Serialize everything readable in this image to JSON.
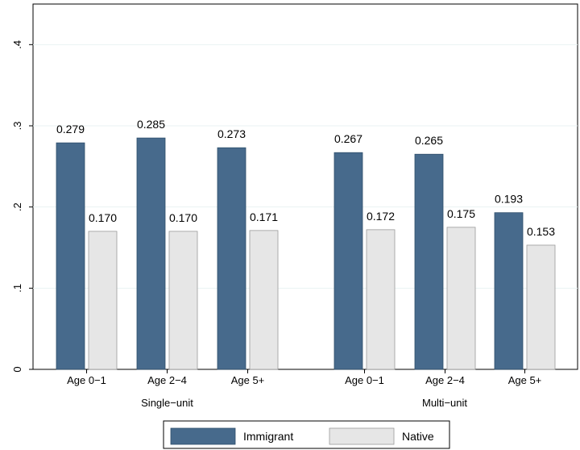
{
  "chart_data": {
    "type": "bar",
    "ylim": [
      0,
      0.45
    ],
    "yticks": [
      {
        "value": 0,
        "label": "0"
      },
      {
        "value": 0.1,
        "label": ".1"
      },
      {
        "value": 0.2,
        "label": ".2"
      },
      {
        "value": 0.3,
        "label": ".3"
      },
      {
        "value": 0.4,
        "label": ".4"
      }
    ],
    "grid": true,
    "legend_position": "bottom",
    "groups": [
      {
        "label": "Single−unit",
        "categories": [
          "Age 0−1",
          "Age 2−4",
          "Age 5+"
        ]
      },
      {
        "label": "Multi−unit",
        "categories": [
          "Age 0−1",
          "Age 2−4",
          "Age 5+"
        ]
      }
    ],
    "series": [
      {
        "name": "Immigrant",
        "color": "#476a8c",
        "values": [
          0.279,
          0.285,
          0.273,
          0.267,
          0.265,
          0.193
        ],
        "labels": [
          "0.279",
          "0.285",
          "0.273",
          "0.267",
          "0.265",
          "0.193"
        ]
      },
      {
        "name": "Native",
        "color": "#e6e6e6",
        "values": [
          0.17,
          0.17,
          0.171,
          0.172,
          0.175,
          0.153
        ],
        "labels": [
          "0.170",
          "0.170",
          "0.171",
          "0.172",
          "0.175",
          "0.153"
        ]
      }
    ]
  }
}
